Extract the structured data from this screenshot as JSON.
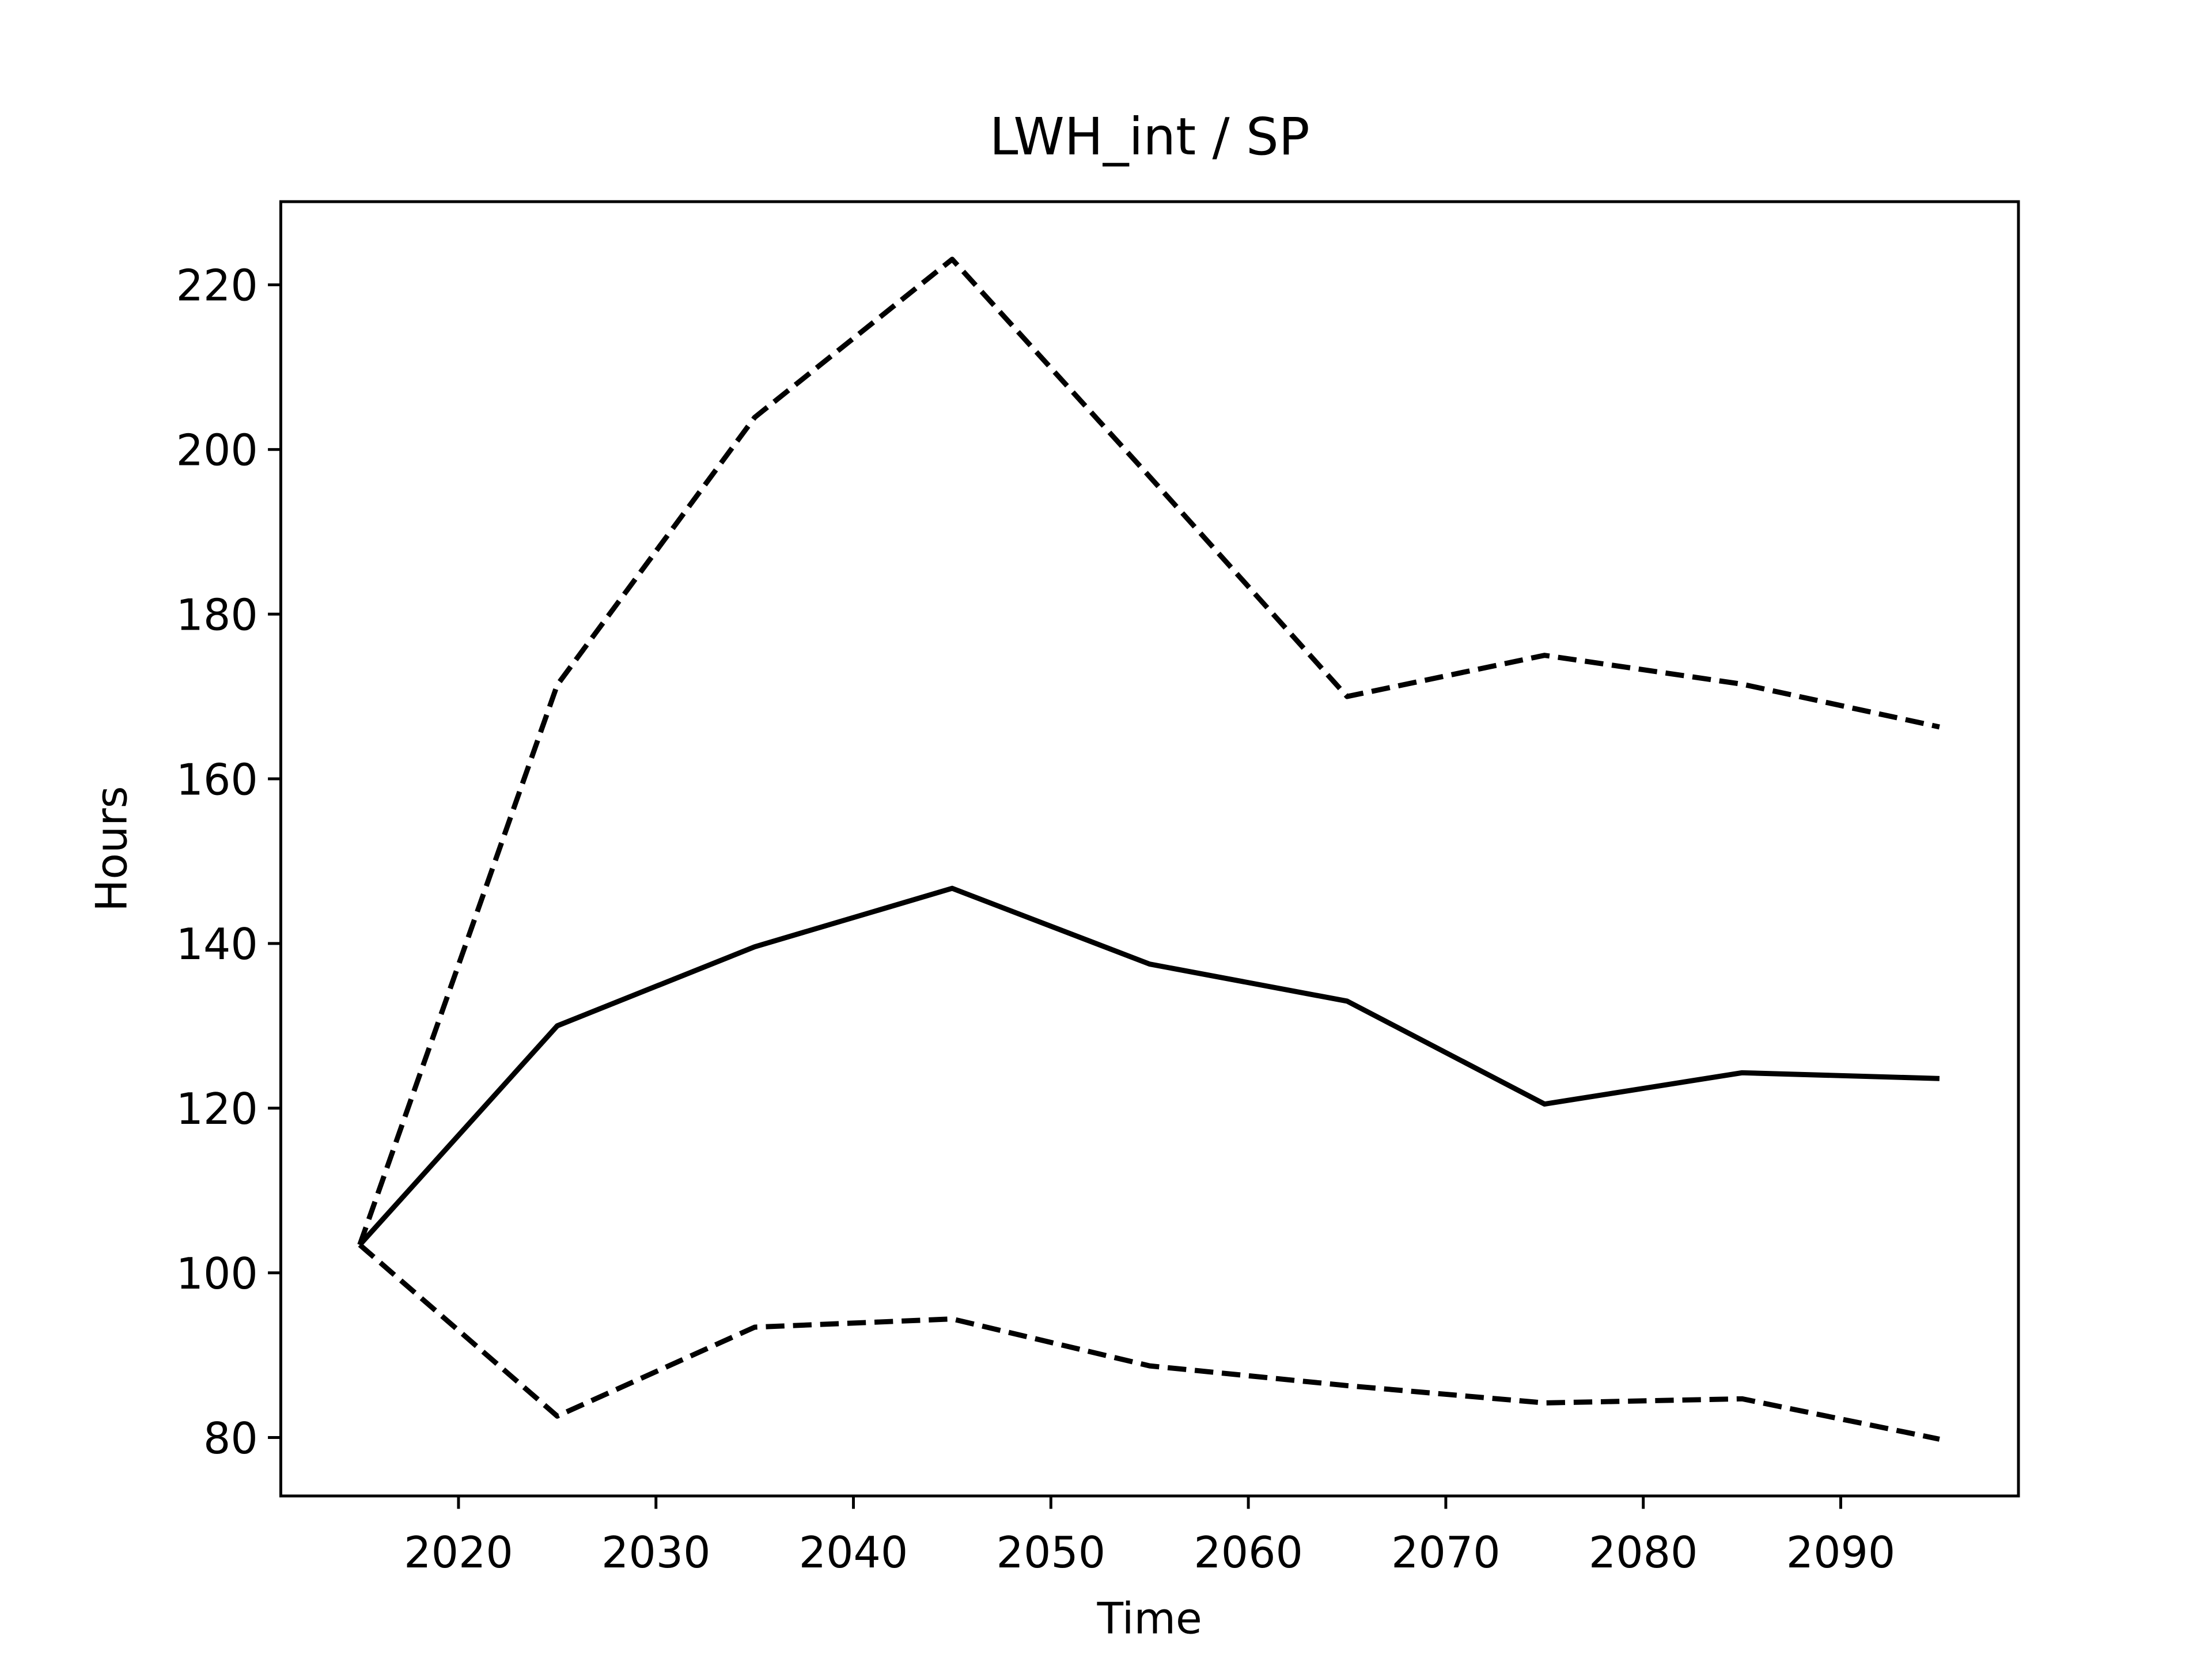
{
  "chart_data": {
    "type": "line",
    "title": "LWH_int / SP",
    "xlabel": "Time",
    "ylabel": "Hours",
    "x": [
      2015,
      2025,
      2035,
      2045,
      2055,
      2065,
      2075,
      2085,
      2095
    ],
    "series": [
      {
        "color": "#000000",
        "linestyle": "solid",
        "values": [
          103.4,
          130.0,
          139.6,
          146.7,
          137.5,
          133.0,
          120.5,
          124.3,
          123.6
        ]
      },
      {
        "color": "#000000",
        "linestyle": "dashed",
        "values": [
          103.4,
          171.4,
          203.9,
          223.1,
          196.7,
          170.0,
          175.0,
          171.5,
          166.3
        ]
      },
      {
        "color": "#000000",
        "linestyle": "dashed",
        "values": [
          103.4,
          82.6,
          93.4,
          94.4,
          88.7,
          86.3,
          84.2,
          84.7,
          79.8
        ]
      }
    ],
    "xlim": [
      2011,
      2099
    ],
    "ylim": [
      72.9,
      230.1
    ],
    "xticks": [
      2020,
      2030,
      2040,
      2050,
      2060,
      2070,
      2080,
      2090
    ],
    "yticks": [
      80,
      100,
      120,
      140,
      160,
      180,
      200,
      220
    ],
    "grid": false
  }
}
